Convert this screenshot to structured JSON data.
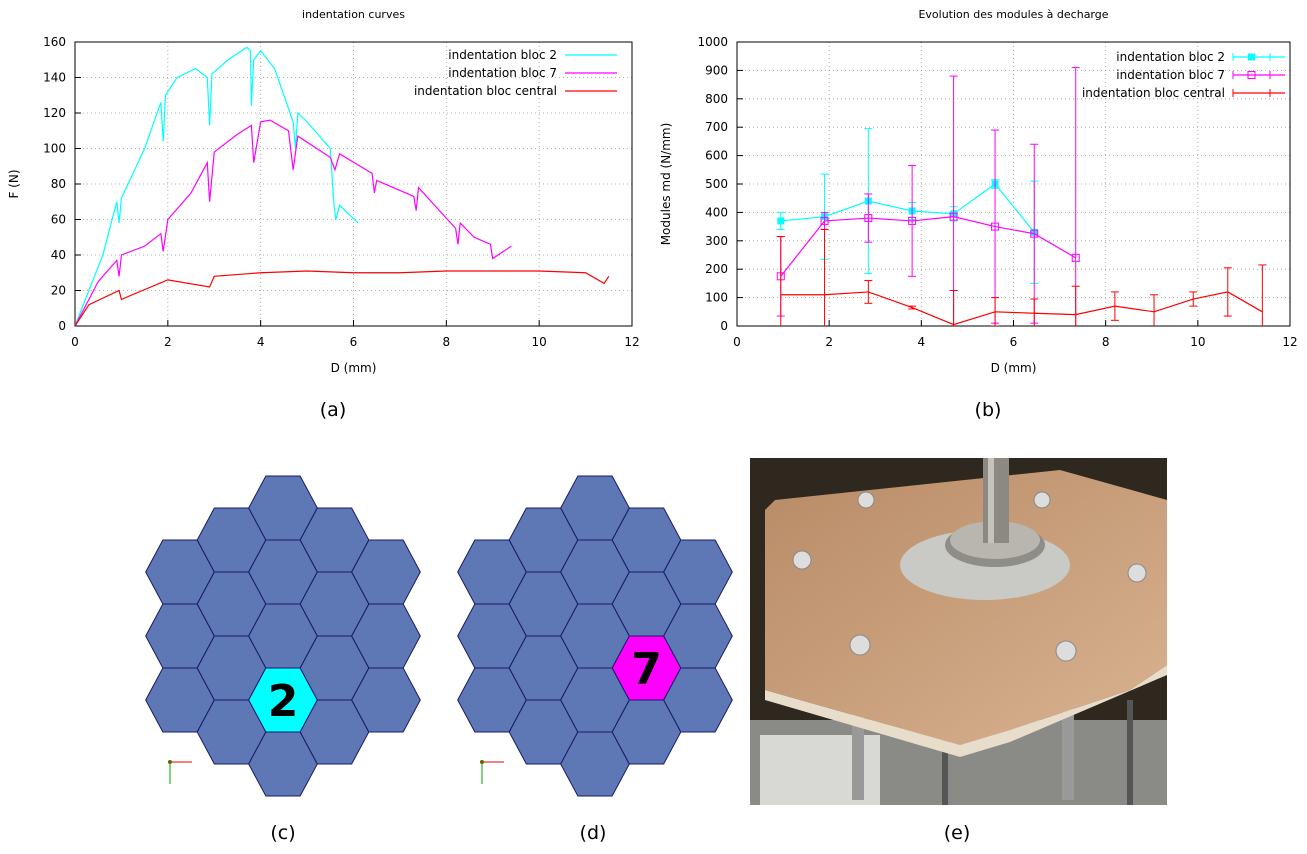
{
  "chart_data": [
    {
      "type": "line",
      "title": "indentation curves",
      "xlabel": "D (mm)",
      "ylabel": "F (N)",
      "xlim": [
        0,
        12
      ],
      "xticks": [
        0,
        2,
        4,
        6,
        8,
        10,
        12
      ],
      "ylim": [
        0,
        160
      ],
      "yticks": [
        0,
        20,
        40,
        60,
        80,
        100,
        120,
        140,
        160
      ],
      "grid": true,
      "legend": "upper right",
      "series": [
        {
          "name": "indentation bloc 2",
          "color": "#00ffff",
          "marker": "none",
          "x": [
            0,
            0.3,
            0.6,
            0.9,
            0.95,
            1.0,
            1.5,
            1.85,
            1.9,
            1.95,
            2.2,
            2.6,
            2.85,
            2.9,
            2.95,
            3.3,
            3.7,
            3.78,
            3.8,
            3.85,
            4.0,
            4.3,
            4.7,
            4.75,
            4.8,
            5.0,
            5.5,
            5.58,
            5.62,
            5.7,
            6.1
          ],
          "values": [
            0,
            20,
            40,
            70,
            58,
            72,
            100,
            126,
            104,
            130,
            140,
            145,
            140,
            113,
            142,
            150,
            157,
            155,
            124,
            150,
            155,
            145,
            115,
            100,
            120,
            115,
            100,
            68,
            60,
            68,
            58
          ]
        },
        {
          "name": "indentation bloc 7",
          "color": "#ff00ff",
          "marker": "none",
          "x": [
            0,
            0.5,
            0.9,
            0.95,
            1.0,
            1.5,
            1.85,
            1.9,
            2.0,
            2.5,
            2.85,
            2.9,
            3.0,
            3.5,
            3.8,
            3.85,
            4.0,
            4.2,
            4.6,
            4.7,
            4.8,
            5.5,
            5.6,
            5.7,
            6.4,
            6.45,
            6.5,
            7.3,
            7.35,
            7.4,
            8.2,
            8.25,
            8.3,
            8.6,
            8.95,
            9.0,
            9.4
          ],
          "values": [
            0,
            25,
            37,
            28,
            40,
            45,
            52,
            42,
            60,
            75,
            92,
            70,
            98,
            108,
            113,
            92,
            115,
            116,
            110,
            88,
            107,
            95,
            88,
            97,
            86,
            75,
            82,
            73,
            65,
            78,
            55,
            46,
            58,
            50,
            46,
            38,
            45
          ]
        },
        {
          "name": "indentation bloc central",
          "color": "#ff0000",
          "marker": "none",
          "x": [
            0,
            0.3,
            0.95,
            1.0,
            2.0,
            2.9,
            3.0,
            4.0,
            5.0,
            6.0,
            7.0,
            8.0,
            9.0,
            10.0,
            11.0,
            11.4,
            11.5
          ],
          "values": [
            0,
            12,
            20,
            15,
            26,
            22,
            28,
            30,
            31,
            30,
            30,
            31,
            31,
            31,
            30,
            24,
            28
          ]
        }
      ]
    },
    {
      "type": "line",
      "title": "Evolution des modules à decharge",
      "xlabel": "D (mm)",
      "ylabel": "Modules md (N/mm)",
      "xlim": [
        0,
        12
      ],
      "xticks": [
        0,
        2,
        4,
        6,
        8,
        10,
        12
      ],
      "ylim": [
        0,
        1000
      ],
      "yticks": [
        0,
        100,
        200,
        300,
        400,
        500,
        600,
        700,
        800,
        900,
        1000
      ],
      "grid": true,
      "legend": "upper right",
      "series": [
        {
          "name": "indentation bloc 2",
          "color": "#00ffff",
          "marker": "filled-square",
          "x": [
            0.95,
            1.9,
            2.85,
            3.8,
            4.7,
            5.6,
            6.45
          ],
          "values": [
            370,
            385,
            440,
            405,
            395,
            500,
            330
          ],
          "errors": [
            30,
            150,
            255,
            30,
            25,
            15,
            180
          ]
        },
        {
          "name": "indentation bloc 7",
          "color": "#ff00ff",
          "marker": "open-square",
          "x": [
            0.95,
            1.9,
            2.85,
            3.8,
            4.7,
            5.6,
            6.45,
            7.35
          ],
          "values": [
            175,
            370,
            380,
            370,
            385,
            350,
            325,
            240
          ],
          "errors": [
            140,
            30,
            85,
            195,
            495,
            340,
            315,
            670
          ]
        },
        {
          "name": "indentation bloc central",
          "color": "#ff0000",
          "marker": "none",
          "x": [
            0.95,
            1.9,
            2.85,
            3.8,
            4.7,
            5.6,
            6.45,
            7.35,
            8.2,
            9.05,
            9.9,
            10.65,
            11.4
          ],
          "values": [
            110,
            110,
            120,
            65,
            5,
            50,
            45,
            40,
            70,
            50,
            95,
            120,
            50
          ],
          "errors": [
            205,
            230,
            40,
            5,
            120,
            50,
            50,
            100,
            50,
            60,
            25,
            85,
            165
          ]
        }
      ]
    }
  ],
  "diagrams": [
    {
      "label": "2"
    },
    {
      "label": "7"
    }
  ],
  "captions": [
    "(a)",
    "(b)",
    "(c)",
    "(d)",
    "(e)"
  ]
}
